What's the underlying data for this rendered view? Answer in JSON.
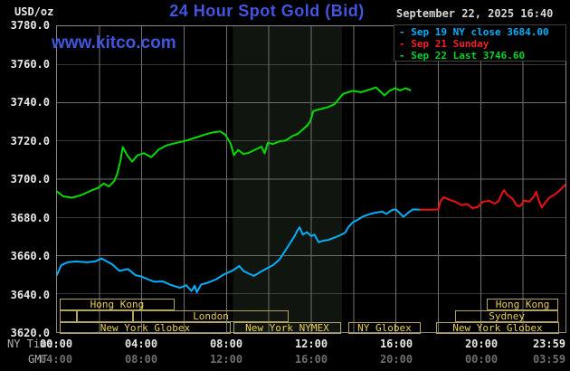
{
  "header": {
    "unit_label": "USD/oz",
    "title": "24 Hour Spot Gold (Bid)",
    "datetime": "September 22, 2025 16:40",
    "watermark": "www.kitco.com"
  },
  "legend": {
    "items": [
      {
        "label": "Sep 19 NY close 3684.00",
        "color": "#00b0ff"
      },
      {
        "label": "Sep 21 Sunday",
        "color": "#ee2222"
      },
      {
        "label": "Sep 22 Last 3746.60",
        "color": "#00d42a"
      }
    ]
  },
  "axes": {
    "ny_time_label": "NY Time",
    "gmt_label": "GMT",
    "tick_hours": [
      0,
      4,
      8,
      12,
      16,
      20,
      23.983
    ],
    "ny_ticks": [
      "00:00",
      "04:00",
      "08:00",
      "12:00",
      "16:00",
      "20:00",
      "23:59"
    ],
    "gmt_ticks": [
      "04:00",
      "08:00",
      "12:00",
      "16:00",
      "20:00",
      "00:00",
      "03:59"
    ],
    "y_ticks": [
      "3780.0",
      "3760.0",
      "3740.0",
      "3720.0",
      "3700.0",
      "3680.0",
      "3660.0",
      "3640.0",
      "3620.0"
    ]
  },
  "sessions": {
    "boxes": [
      {
        "row": 0,
        "start_h": 0.17,
        "end_h": 5.57,
        "label": "Hong Kong"
      },
      {
        "row": 0,
        "start_h": 20.26,
        "end_h": 23.62,
        "label": "Hong Kong"
      },
      {
        "row": 1,
        "start_h": 0.17,
        "end_h": 0.98,
        "label": ""
      },
      {
        "row": 1,
        "start_h": 0.98,
        "end_h": 3.62,
        "label": ""
      },
      {
        "row": 1,
        "start_h": 3.62,
        "end_h": 10.94,
        "label": "London"
      },
      {
        "row": 1,
        "start_h": 18.77,
        "end_h": 23.62,
        "label": "Sydney"
      },
      {
        "row": 2,
        "start_h": 0.17,
        "end_h": 8.21,
        "label": "New York Globex"
      },
      {
        "row": 2,
        "start_h": 8.34,
        "end_h": 13.4,
        "label": "New York NYMEX"
      },
      {
        "row": 2,
        "start_h": 13.74,
        "end_h": 17.15,
        "label": "NY Globex"
      },
      {
        "row": 2,
        "start_h": 17.87,
        "end_h": 23.66,
        "label": "New York Globex"
      }
    ]
  },
  "chart_data": {
    "type": "line",
    "title": "24 Hour Spot Gold (Bid)",
    "x_unit": "hours, NY Time",
    "x_range": [
      0,
      24
    ],
    "y_range": [
      3620,
      3780
    ],
    "ylabel": "USD/oz",
    "y_gridline_step": 20,
    "x_gridline_step_hours": 2,
    "grid": true,
    "legend_position": "top-right",
    "highlight_band_hours": [
      8.3,
      13.45
    ],
    "series": [
      {
        "name": "Sep 22 (Last 3746.60)",
        "color": "#00dc00",
        "points": [
          [
            0,
            3693.5
          ],
          [
            0.3,
            3691
          ],
          [
            0.7,
            3690.3
          ],
          [
            1.1,
            3691.5
          ],
          [
            1.6,
            3694
          ],
          [
            1.95,
            3695.5
          ],
          [
            2.2,
            3697.7
          ],
          [
            2.45,
            3696.2
          ],
          [
            2.7,
            3699
          ],
          [
            2.85,
            3703
          ],
          [
            3.0,
            3710
          ],
          [
            3.1,
            3716.8
          ],
          [
            3.3,
            3712.8
          ],
          [
            3.55,
            3709.2
          ],
          [
            3.8,
            3712.5
          ],
          [
            4.1,
            3713.6
          ],
          [
            4.45,
            3711.5
          ],
          [
            4.8,
            3715.5
          ],
          [
            5.2,
            3717.8
          ],
          [
            5.65,
            3719
          ],
          [
            6.1,
            3720.2
          ],
          [
            6.5,
            3721.6
          ],
          [
            7.0,
            3723.4
          ],
          [
            7.35,
            3724.4
          ],
          [
            7.7,
            3725
          ],
          [
            7.95,
            3723.2
          ],
          [
            8.2,
            3718.5
          ],
          [
            8.35,
            3712.5
          ],
          [
            8.55,
            3715.3
          ],
          [
            8.8,
            3713.2
          ],
          [
            9.05,
            3713.8
          ],
          [
            9.35,
            3715.4
          ],
          [
            9.65,
            3717
          ],
          [
            9.8,
            3713.5
          ],
          [
            9.95,
            3719
          ],
          [
            10.2,
            3718.4
          ],
          [
            10.5,
            3719.8
          ],
          [
            10.8,
            3720.2
          ],
          [
            11.1,
            3722.5
          ],
          [
            11.35,
            3723.6
          ],
          [
            11.6,
            3726
          ],
          [
            11.85,
            3728.5
          ],
          [
            11.96,
            3730.6
          ],
          [
            12.1,
            3735.6
          ],
          [
            12.4,
            3736.6
          ],
          [
            12.75,
            3737.5
          ],
          [
            13.1,
            3739.2
          ],
          [
            13.5,
            3744.6
          ],
          [
            13.95,
            3746.2
          ],
          [
            14.35,
            3745.5
          ],
          [
            14.8,
            3747
          ],
          [
            15.05,
            3748
          ],
          [
            15.25,
            3746
          ],
          [
            15.45,
            3743.8
          ],
          [
            15.7,
            3746.2
          ],
          [
            15.95,
            3747.6
          ],
          [
            16.2,
            3746.4
          ],
          [
            16.45,
            3747.6
          ],
          [
            16.67,
            3746.6
          ]
        ]
      },
      {
        "name": "Sep 19 (NY close 3684.00)",
        "color": "#00b0ff",
        "points": [
          [
            0,
            3650
          ],
          [
            0.2,
            3655
          ],
          [
            0.5,
            3656.5
          ],
          [
            0.9,
            3657
          ],
          [
            1.4,
            3656.5
          ],
          [
            1.8,
            3657
          ],
          [
            2.1,
            3658.5
          ],
          [
            2.35,
            3657
          ],
          [
            2.6,
            3655.5
          ],
          [
            2.95,
            3652
          ],
          [
            3.35,
            3653
          ],
          [
            3.7,
            3649.8
          ],
          [
            4.0,
            3649
          ],
          [
            4.25,
            3647.8
          ],
          [
            4.6,
            3646.3
          ],
          [
            5.0,
            3646.5
          ],
          [
            5.4,
            3644.5
          ],
          [
            5.8,
            3643.2
          ],
          [
            6.1,
            3644.5
          ],
          [
            6.35,
            3641.5
          ],
          [
            6.5,
            3644.3
          ],
          [
            6.6,
            3640.8
          ],
          [
            6.8,
            3644.8
          ],
          [
            7.1,
            3645.8
          ],
          [
            7.5,
            3647.6
          ],
          [
            7.9,
            3650.3
          ],
          [
            8.3,
            3652.3
          ],
          [
            8.6,
            3654.6
          ],
          [
            8.8,
            3652
          ],
          [
            9.0,
            3650.8
          ],
          [
            9.3,
            3649.4
          ],
          [
            9.6,
            3651.5
          ],
          [
            9.9,
            3653.3
          ],
          [
            10.2,
            3655
          ],
          [
            10.5,
            3658
          ],
          [
            10.8,
            3663
          ],
          [
            11.0,
            3666.5
          ],
          [
            11.2,
            3670
          ],
          [
            11.35,
            3673.2
          ],
          [
            11.45,
            3674.8
          ],
          [
            11.6,
            3671
          ],
          [
            11.8,
            3672.3
          ],
          [
            12.0,
            3670.2
          ],
          [
            12.15,
            3671
          ],
          [
            12.35,
            3667
          ],
          [
            12.55,
            3667.8
          ],
          [
            12.8,
            3668.2
          ],
          [
            13.1,
            3669.4
          ],
          [
            13.35,
            3670.6
          ],
          [
            13.6,
            3672
          ],
          [
            13.75,
            3674.8
          ],
          [
            13.95,
            3677.3
          ],
          [
            14.2,
            3678.8
          ],
          [
            14.45,
            3680.5
          ],
          [
            14.75,
            3681.7
          ],
          [
            15.05,
            3682.5
          ],
          [
            15.35,
            3683
          ],
          [
            15.55,
            3681.8
          ],
          [
            15.8,
            3683.8
          ],
          [
            16.0,
            3684.2
          ],
          [
            16.2,
            3682
          ],
          [
            16.35,
            3680.3
          ],
          [
            16.6,
            3682.7
          ],
          [
            16.8,
            3684.2
          ],
          [
            17.15,
            3684
          ]
        ]
      },
      {
        "name": "Sep 21 (Sunday)",
        "color": "#ee1111",
        "points": [
          [
            17.15,
            3684
          ],
          [
            17.6,
            3684
          ],
          [
            18.0,
            3684.2
          ],
          [
            18.1,
            3688.5
          ],
          [
            18.25,
            3690.6
          ],
          [
            18.5,
            3689.3
          ],
          [
            18.8,
            3688.2
          ],
          [
            19.1,
            3686.4
          ],
          [
            19.35,
            3687
          ],
          [
            19.6,
            3684.9
          ],
          [
            19.85,
            3685.3
          ],
          [
            20.1,
            3688.2
          ],
          [
            20.4,
            3688.7
          ],
          [
            20.65,
            3687.2
          ],
          [
            20.85,
            3688.6
          ],
          [
            21.0,
            3692.6
          ],
          [
            21.1,
            3694.2
          ],
          [
            21.25,
            3691.8
          ],
          [
            21.5,
            3689.8
          ],
          [
            21.7,
            3686.2
          ],
          [
            21.85,
            3685.8
          ],
          [
            22.05,
            3688.8
          ],
          [
            22.3,
            3688.3
          ],
          [
            22.5,
            3690.8
          ],
          [
            22.62,
            3693.4
          ],
          [
            22.75,
            3688.6
          ],
          [
            22.88,
            3685.2
          ],
          [
            23.05,
            3687.8
          ],
          [
            23.25,
            3690.4
          ],
          [
            23.5,
            3692
          ],
          [
            23.75,
            3694.3
          ],
          [
            23.98,
            3697
          ]
        ]
      }
    ]
  },
  "colors": {
    "background": "#000000",
    "brand_blue": "#4155de",
    "grid": "#6f6f6f",
    "plot_border": "#8a8a8a",
    "band": "#11150f",
    "session_border": "#b3a263",
    "session_text": "#e8cf55",
    "axis_text": "#e8e8e8",
    "axis_text_dim": "#b0b0b0",
    "gmt_text": "#6e6e6e",
    "date_text": "#d6d6d6",
    "legend_border": "#404040"
  }
}
